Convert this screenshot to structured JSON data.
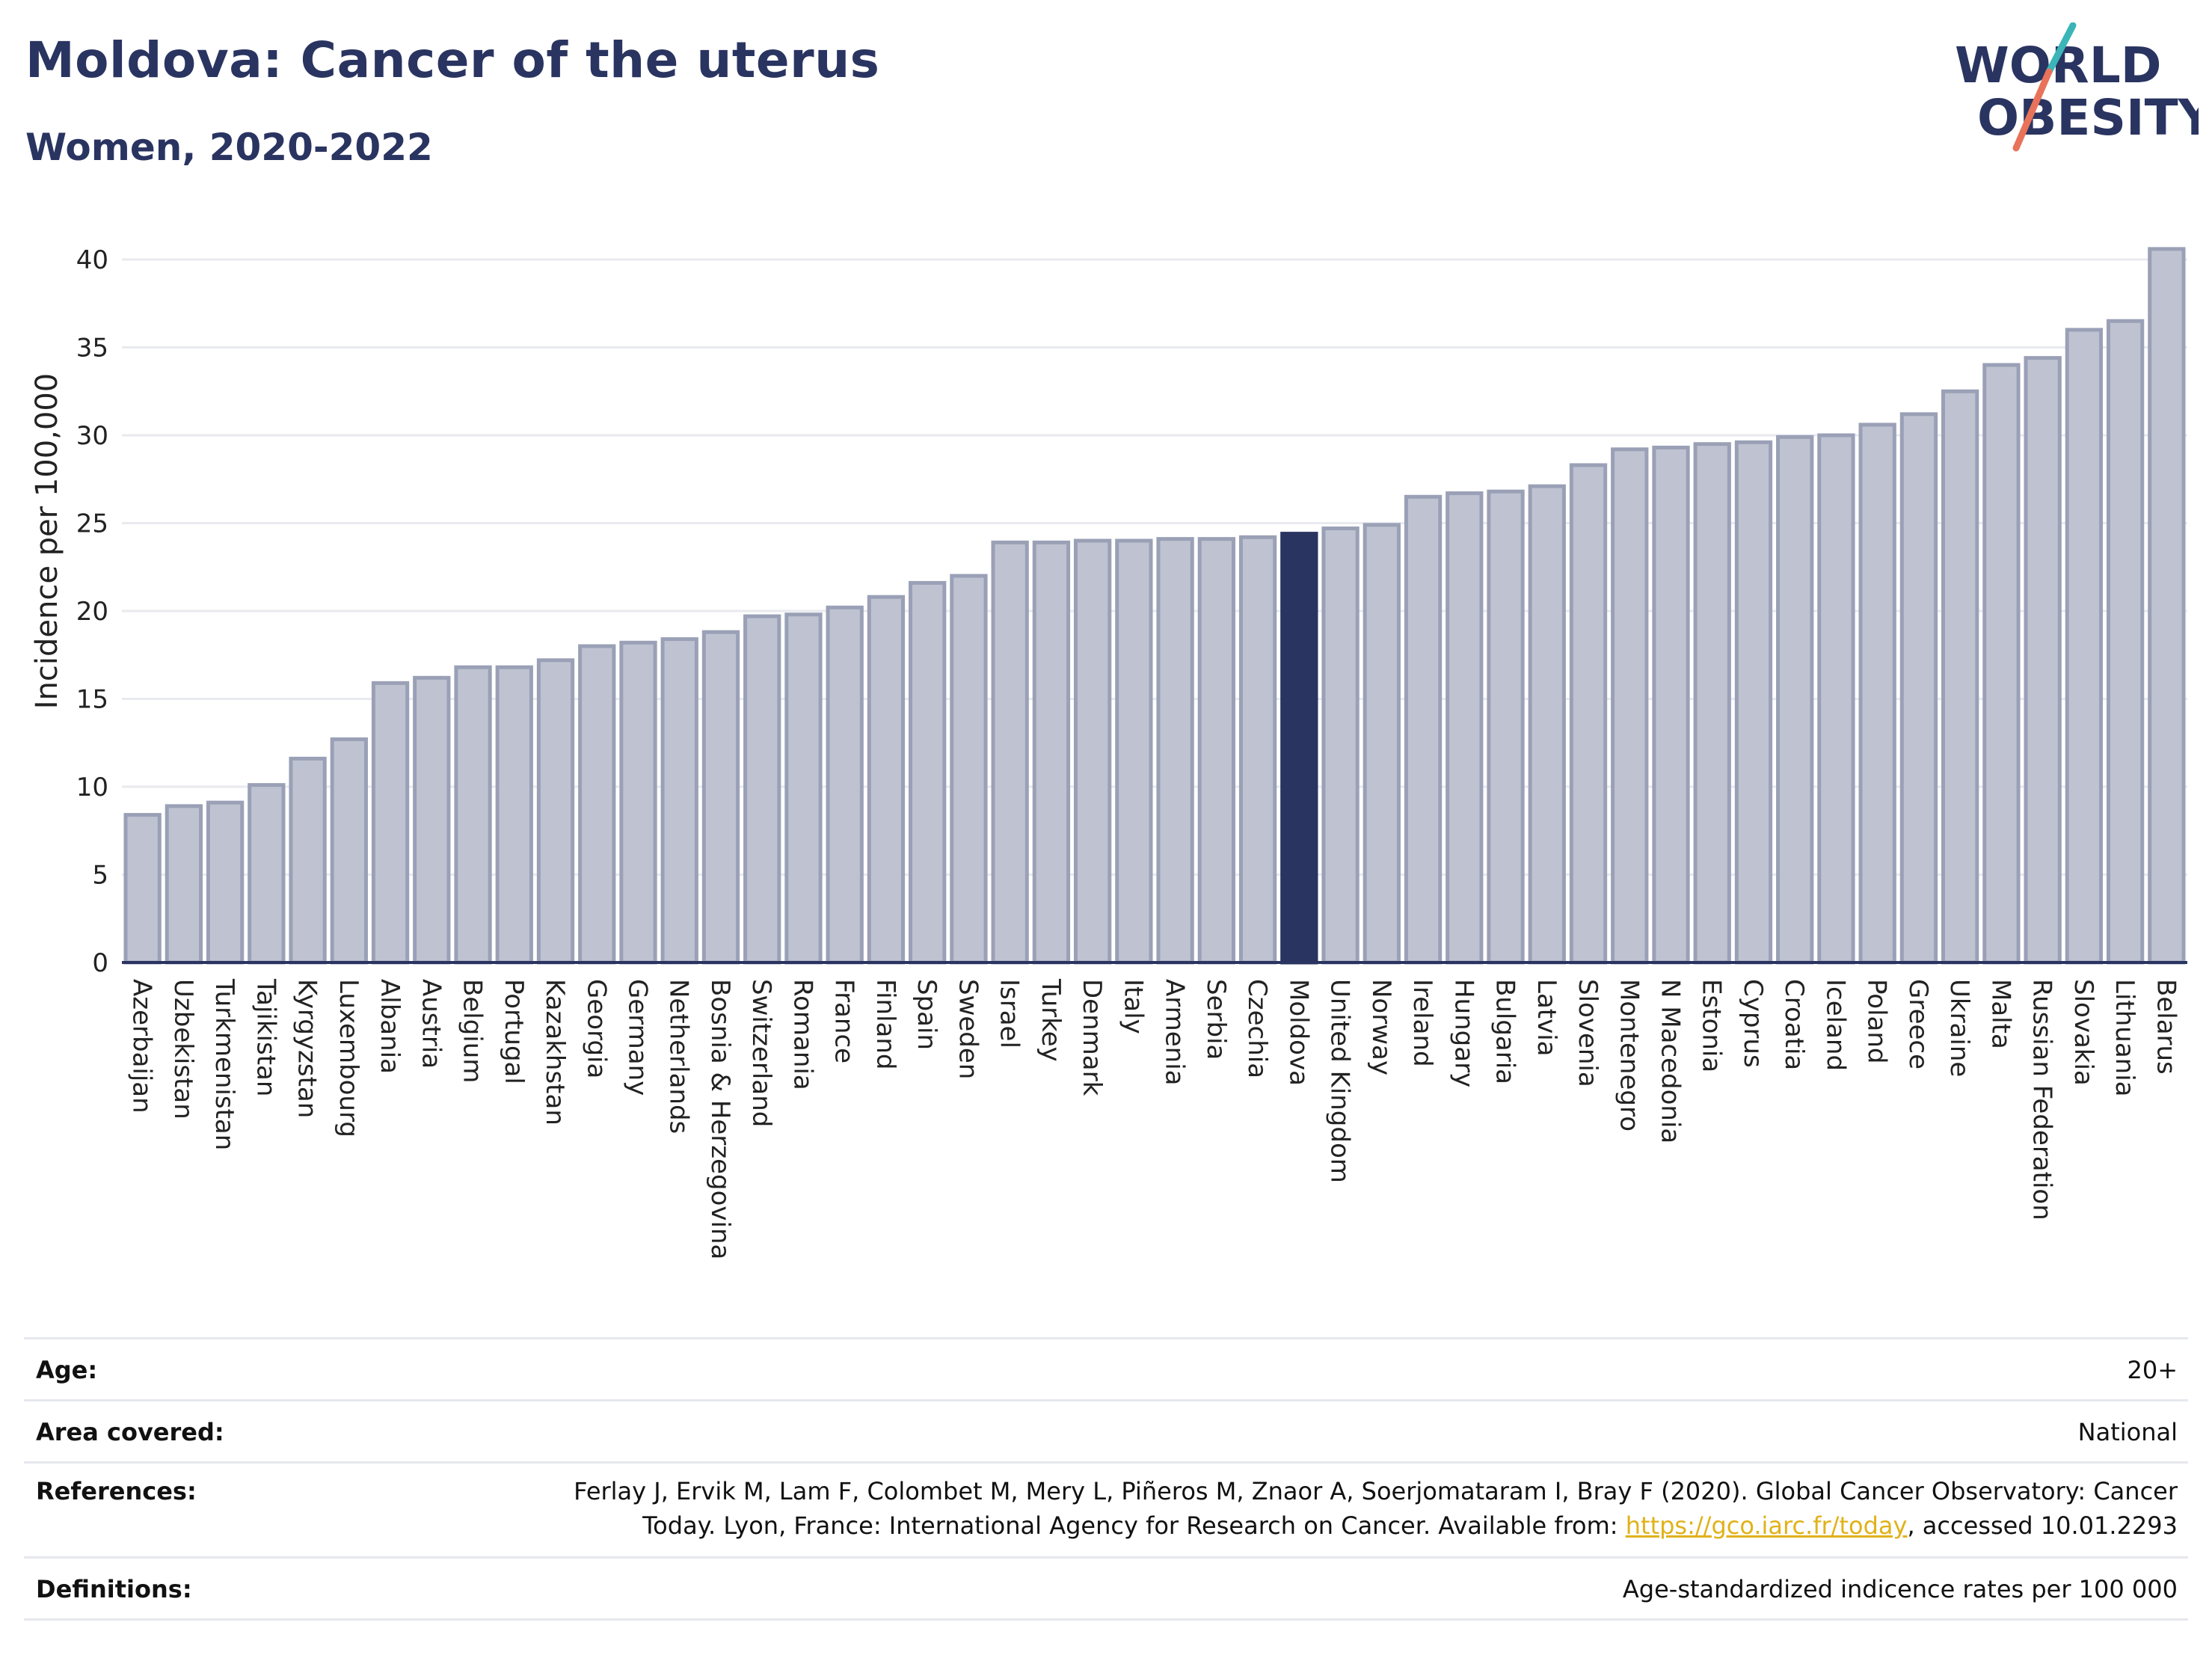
{
  "header": {
    "title": "Moldova: Cancer of the uterus",
    "subtitle": "Women, 2020-2022"
  },
  "logo": {
    "line1": "WORLD",
    "line2": "OBESITY",
    "colors": {
      "text": "#2a3461",
      "slash_top": "#3bb5b8",
      "slash_bottom": "#e8735a"
    }
  },
  "chart_data": {
    "type": "bar",
    "ylabel": "Incidence per 100,000",
    "ylim": [
      0,
      42
    ],
    "yticks": [
      0,
      5,
      10,
      15,
      20,
      25,
      30,
      35,
      40
    ],
    "grid": true,
    "highlight": "Moldova",
    "colors": {
      "bar": "#bfc3d1",
      "bar_edge": "#9aa0b6",
      "highlight": "#2a3461",
      "grid": "#e8eaef",
      "axis": "#2a3461"
    },
    "categories": [
      "Azerbaijan",
      "Uzbekistan",
      "Turkmenistan",
      "Tajikistan",
      "Kyrgyzstan",
      "Luxembourg",
      "Albania",
      "Austria",
      "Belgium",
      "Portugal",
      "Kazakhstan",
      "Georgia",
      "Germany",
      "Netherlands",
      "Bosnia & Herzegovina",
      "Switzerland",
      "Romania",
      "France",
      "Finland",
      "Spain",
      "Sweden",
      "Israel",
      "Turkey",
      "Denmark",
      "Italy",
      "Armenia",
      "Serbia",
      "Czechia",
      "Moldova",
      "United Kingdom",
      "Norway",
      "Ireland",
      "Hungary",
      "Bulgaria",
      "Latvia",
      "Slovenia",
      "Montenegro",
      "N Macedonia",
      "Estonia",
      "Cyprus",
      "Croatia",
      "Iceland",
      "Poland",
      "Greece",
      "Ukraine",
      "Malta",
      "Russian Federation",
      "Slovakia",
      "Lithuania",
      "Belarus"
    ],
    "values": [
      8.4,
      8.9,
      9.1,
      10.1,
      11.6,
      12.7,
      15.9,
      16.2,
      16.8,
      16.8,
      17.2,
      18.0,
      18.2,
      18.4,
      18.8,
      19.7,
      19.8,
      20.2,
      20.8,
      21.6,
      22.0,
      23.9,
      23.9,
      24.0,
      24.0,
      24.1,
      24.1,
      24.2,
      24.4,
      24.7,
      24.9,
      26.5,
      26.7,
      26.8,
      27.1,
      28.3,
      29.2,
      29.3,
      29.5,
      29.6,
      29.9,
      30.0,
      30.6,
      31.2,
      32.5,
      34.0,
      34.4,
      36.0,
      36.5,
      40.6
    ]
  },
  "meta": {
    "age_label": "Age:",
    "age_value": "20+",
    "area_label": "Area covered:",
    "area_value": "National",
    "references_label": "References:",
    "references_line1": "Ferlay J, Ervik M, Lam F, Colombet M, Mery L, Piñeros M, Znaor A, Soerjomataram I, Bray F (2020). Global Cancer Observatory: Cancer",
    "references_line2_pre": "Today. Lyon, France: International Agency for Research on Cancer. Available from: ",
    "references_link": "https://gco.iarc.fr/today",
    "references_line2_post": ", accessed 10.01.2293",
    "definitions_label": "Definitions:",
    "definitions_value": "Age-standardized indicence rates per 100 000"
  }
}
